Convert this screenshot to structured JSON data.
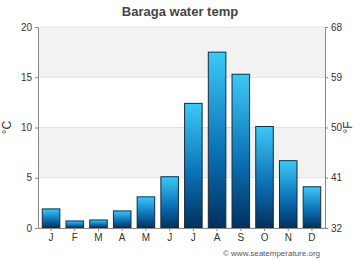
{
  "chart_data": {
    "type": "bar",
    "title": "Baraga water temp",
    "categories": [
      "J",
      "F",
      "M",
      "A",
      "M",
      "J",
      "J",
      "A",
      "S",
      "O",
      "N",
      "D"
    ],
    "values": [
      1.9,
      0.7,
      0.8,
      1.7,
      3.1,
      5.1,
      12.4,
      17.5,
      15.3,
      10.1,
      6.7,
      4.1
    ],
    "ylabel": "°C",
    "y2label": "°F",
    "ylim": [
      0,
      20
    ],
    "yticks": [
      0,
      5,
      10,
      15,
      20
    ],
    "y2lim": [
      32,
      68
    ],
    "y2ticks": [
      32,
      41,
      50,
      59,
      68
    ],
    "grid": true,
    "annotations": [
      "© www.seatemperature.org"
    ]
  }
}
